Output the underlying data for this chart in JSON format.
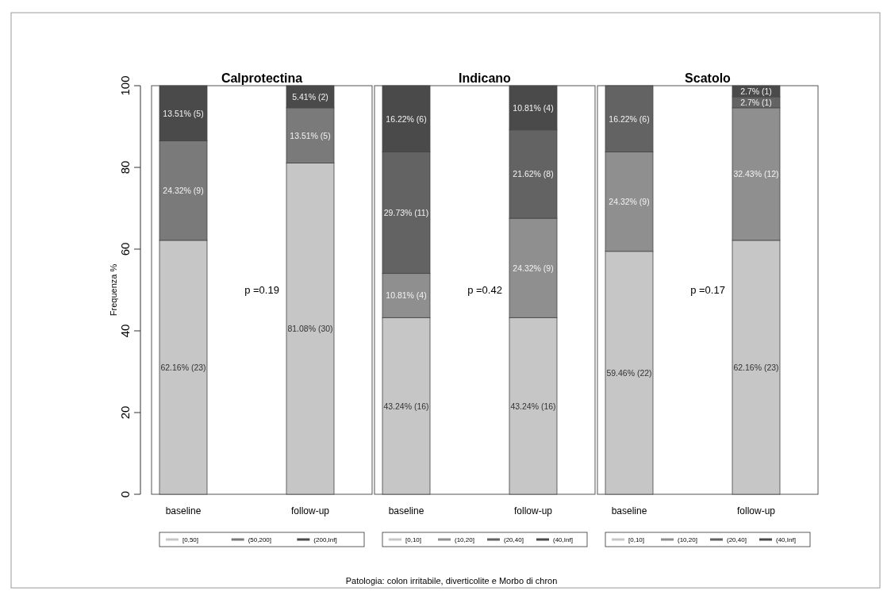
{
  "chart_data": [
    {
      "type": "bar",
      "stacked": true,
      "title": "Calprotectina",
      "ylabel": "Frequenza %",
      "categories": [
        "baseline",
        "follow-up"
      ],
      "ylim": [
        0,
        100
      ],
      "yticks": [
        0,
        20,
        40,
        60,
        80,
        100
      ],
      "legend": "bottom",
      "annotations": [
        "p =0.19",
        "Patologia: colon irritabile, diverticolite e Morbo di chron"
      ],
      "series": [
        {
          "name": "[0,50]",
          "color": "#c6c6c6",
          "values": [
            62.16,
            81.08
          ],
          "value_labels": [
            "62.16% (23)",
            "81.08% (30)"
          ]
        },
        {
          "name": "(50,200]",
          "color": "#7a7a7a",
          "values": [
            24.32,
            13.51
          ],
          "value_labels": [
            "24.32% (9)",
            "13.51% (5)"
          ]
        },
        {
          "name": "(200,Inf]",
          "color": "#4a4a4a",
          "values": [
            13.51,
            5.41
          ],
          "value_labels": [
            "13.51% (5)",
            "5.41% (2)"
          ]
        }
      ]
    },
    {
      "type": "bar",
      "stacked": true,
      "title": "Indicano",
      "categories": [
        "baseline",
        "follow-up"
      ],
      "ylim": [
        0,
        100
      ],
      "tick_labels": "x",
      "legend": "bottom",
      "annotations": [
        "p =0.42"
      ],
      "series": [
        {
          "name": "[0,10]",
          "color": "#c6c6c6",
          "values": [
            43.24,
            43.24
          ],
          "value_labels": [
            "43.24% (16)",
            "43.24% (16)"
          ]
        },
        {
          "name": "(10,20]",
          "color": "#8f8f90",
          "values": [
            10.81,
            24.32
          ],
          "value_labels": [
            "10.81% (4)",
            "24.32% (9)"
          ]
        },
        {
          "name": "(20,40]",
          "color": "#636363",
          "values": [
            29.73,
            21.62
          ],
          "value_labels": [
            "29.73% (11)",
            "21.62% (8)"
          ]
        },
        {
          "name": "(40,Inf]",
          "color": "#4a4a4a",
          "values": [
            16.22,
            10.81
          ],
          "value_labels": [
            "16.22% (6)",
            "10.81% (4)"
          ]
        }
      ]
    },
    {
      "type": "bar",
      "stacked": true,
      "title": "Scatolo",
      "categories": [
        "baseline",
        "follow-up"
      ],
      "ylim": [
        0,
        100
      ],
      "tick_labels": "x",
      "legend": "bottom",
      "annotations": [
        "p =0.17"
      ],
      "series": [
        {
          "name": "[0,10]",
          "color": "#c6c6c6",
          "values": [
            59.46,
            62.16
          ],
          "value_labels": [
            "59.46% (22)",
            "62.16% (23)"
          ]
        },
        {
          "name": "(10,20]",
          "color": "#8f8f90",
          "values": [
            24.32,
            32.43
          ],
          "value_labels": [
            "24.32% (9)",
            "32.43% (12)"
          ]
        },
        {
          "name": "(20,40]",
          "color": "#636363",
          "values": [
            16.22,
            2.7
          ],
          "value_labels": [
            "16.22% (6)",
            "2.7% (1)"
          ]
        },
        {
          "name": "(40,Inf]",
          "color": "#4a4a4a",
          "values": [
            0,
            2.7
          ],
          "value_labels": [
            null,
            "2.7% (1)"
          ]
        }
      ]
    }
  ]
}
